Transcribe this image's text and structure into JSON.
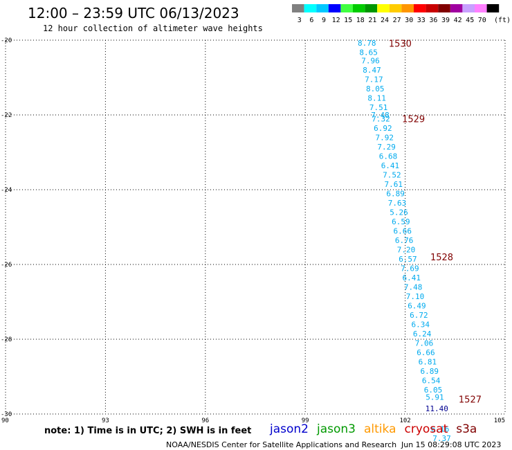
{
  "header": {
    "title": "12:00 – 23:59 UTC 06/13/2023",
    "subtitle": "12 hour collection of altimeter wave heights"
  },
  "legend": {
    "unit": "(ft)",
    "items": [
      {
        "label": "3",
        "color": "#808080"
      },
      {
        "label": "6",
        "color": "#00ffff"
      },
      {
        "label": "9",
        "color": "#00c8ff"
      },
      {
        "label": "12",
        "color": "#0000ff"
      },
      {
        "label": "15",
        "color": "#40ff40"
      },
      {
        "label": "18",
        "color": "#00cc00"
      },
      {
        "label": "21",
        "color": "#009600"
      },
      {
        "label": "24",
        "color": "#ffff00"
      },
      {
        "label": "27",
        "color": "#ffcc00"
      },
      {
        "label": "30",
        "color": "#ff9600"
      },
      {
        "label": "33",
        "color": "#ff0000"
      },
      {
        "label": "36",
        "color": "#c80000"
      },
      {
        "label": "39",
        "color": "#800000"
      },
      {
        "label": "42",
        "color": "#a000a0"
      },
      {
        "label": "45",
        "color": "#c8a0ff"
      },
      {
        "label": "70",
        "color": "#ff80ff"
      },
      {
        "label": "",
        "color": "#000000"
      }
    ]
  },
  "footer": {
    "note": "note:  1) Time is in UTC;  2) SWH is in feet",
    "satellites": [
      {
        "name": "jason2",
        "color": "#0000cc"
      },
      {
        "name": "jason3",
        "color": "#009900"
      },
      {
        "name": "altika",
        "color": "#ff9900"
      },
      {
        "name": "cryosat",
        "color": "#cc0000"
      },
      {
        "name": "s3a",
        "color": "#800000"
      }
    ],
    "credit": "NOAA/NESDIS Center for Satellite Applications and Research",
    "timestamp": "Jun 15 08:29:08 UTC 2023"
  },
  "chart_data": {
    "type": "scatter",
    "xlim": [
      90,
      105
    ],
    "ylim": [
      -30,
      -20
    ],
    "x_ticks": [
      "90",
      "93",
      "96",
      "99",
      "102",
      "105"
    ],
    "y_ticks": [
      "-20",
      "-22",
      "-24",
      "-26",
      "-28",
      "-30"
    ],
    "grid": true,
    "colors": {
      "swh": "#00aaee",
      "swh_high": "#000090",
      "time": "#800000"
    },
    "points": [
      {
        "x": 100.85,
        "y": -20.07,
        "v": "8.78"
      },
      {
        "x": 100.9,
        "y": -20.32,
        "v": "8.65"
      },
      {
        "x": 100.96,
        "y": -20.55,
        "v": "7.96"
      },
      {
        "x": 101.0,
        "y": -20.8,
        "v": "8.47"
      },
      {
        "x": 101.06,
        "y": -21.05,
        "v": "7.17"
      },
      {
        "x": 101.1,
        "y": -21.3,
        "v": "8.05"
      },
      {
        "x": 101.15,
        "y": -21.55,
        "v": "8.11"
      },
      {
        "x": 101.2,
        "y": -21.8,
        "v": "7.51"
      },
      {
        "x": 101.25,
        "y": -22.0,
        "v": "7.48"
      },
      {
        "x": 101.27,
        "y": -22.1,
        "v": "7.32"
      },
      {
        "x": 101.33,
        "y": -22.35,
        "v": "6.92"
      },
      {
        "x": 101.38,
        "y": -22.6,
        "v": "7.92"
      },
      {
        "x": 101.44,
        "y": -22.85,
        "v": "7.29"
      },
      {
        "x": 101.49,
        "y": -23.1,
        "v": "6.68"
      },
      {
        "x": 101.55,
        "y": -23.35,
        "v": "6.41"
      },
      {
        "x": 101.6,
        "y": -23.6,
        "v": "7.52"
      },
      {
        "x": 101.65,
        "y": -23.85,
        "v": "7.61"
      },
      {
        "x": 101.71,
        "y": -24.1,
        "v": "6.89"
      },
      {
        "x": 101.76,
        "y": -24.35,
        "v": "7.63"
      },
      {
        "x": 101.81,
        "y": -24.6,
        "v": "5.26"
      },
      {
        "x": 101.87,
        "y": -24.85,
        "v": "6.59"
      },
      {
        "x": 101.92,
        "y": -25.1,
        "v": "6.66"
      },
      {
        "x": 101.97,
        "y": -25.35,
        "v": "6.76"
      },
      {
        "x": 102.03,
        "y": -25.6,
        "v": "7.20"
      },
      {
        "x": 102.08,
        "y": -25.85,
        "v": "6.57"
      },
      {
        "x": 102.14,
        "y": -26.1,
        "v": "7.69"
      },
      {
        "x": 102.19,
        "y": -26.35,
        "v": "6.41"
      },
      {
        "x": 102.24,
        "y": -26.6,
        "v": "7.48"
      },
      {
        "x": 102.3,
        "y": -26.85,
        "v": "7.10"
      },
      {
        "x": 102.35,
        "y": -27.1,
        "v": "6.49"
      },
      {
        "x": 102.41,
        "y": -27.35,
        "v": "6.72"
      },
      {
        "x": 102.46,
        "y": -27.6,
        "v": "6.34"
      },
      {
        "x": 102.51,
        "y": -27.85,
        "v": "6.24"
      },
      {
        "x": 102.57,
        "y": -28.1,
        "v": "7.06"
      },
      {
        "x": 102.62,
        "y": -28.35,
        "v": "6.66"
      },
      {
        "x": 102.67,
        "y": -28.6,
        "v": "6.81"
      },
      {
        "x": 102.73,
        "y": -28.85,
        "v": "6.89"
      },
      {
        "x": 102.78,
        "y": -29.1,
        "v": "6.54"
      },
      {
        "x": 102.84,
        "y": -29.35,
        "v": "6.05"
      },
      {
        "x": 102.89,
        "y": -29.55,
        "v": "5.91"
      },
      {
        "x": 102.95,
        "y": -29.85,
        "v": "11.40",
        "high": true
      },
      {
        "x": 103.05,
        "y": -30.4,
        "v": "6.16"
      },
      {
        "x": 103.1,
        "y": -30.65,
        "v": "7.37"
      }
    ],
    "time_labels": [
      {
        "x": 101.85,
        "y": -20.08,
        "label": "1530"
      },
      {
        "x": 102.25,
        "y": -22.1,
        "label": "1529"
      },
      {
        "x": 103.1,
        "y": -25.8,
        "label": "1528"
      },
      {
        "x": 103.95,
        "y": -29.6,
        "label": "1527"
      }
    ]
  }
}
